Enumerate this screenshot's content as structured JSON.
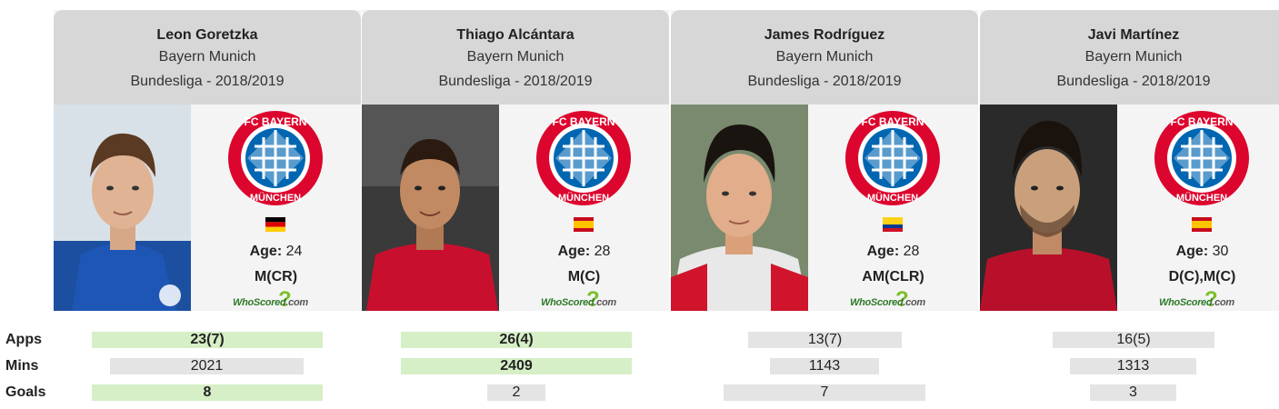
{
  "stat_labels": {
    "apps": "Apps",
    "mins": "Mins",
    "goals": "Goals"
  },
  "age_label": "Age:",
  "watermark": {
    "brand": "WhoScored",
    "suffix": ".com"
  },
  "accent_colors": {
    "best_bar": "#d6efc6",
    "bar": "#e4e4e4",
    "header": "#d7d7d7",
    "crest_red": "#dc052d",
    "crest_blue": "#0066b2"
  },
  "players": [
    {
      "name": "Leon Goretzka",
      "team": "Bayern Munich",
      "competition": "Bundesliga - 2018/2019",
      "age": "24",
      "position": "M(CR)",
      "flag": "germany-flag",
      "stats": {
        "apps": "23(7)",
        "mins": "2021",
        "goals": "8"
      }
    },
    {
      "name": "Thiago Alcántara",
      "team": "Bayern Munich",
      "competition": "Bundesliga - 2018/2019",
      "age": "28",
      "position": "M(C)",
      "flag": "spain-flag",
      "stats": {
        "apps": "26(4)",
        "mins": "2409",
        "goals": "2"
      }
    },
    {
      "name": "James Rodríguez",
      "team": "Bayern Munich",
      "competition": "Bundesliga - 2018/2019",
      "age": "28",
      "position": "AM(CLR)",
      "flag": "colombia-flag",
      "stats": {
        "apps": "13(7)",
        "mins": "1143",
        "goals": "7"
      }
    },
    {
      "name": "Javi Martínez",
      "team": "Bayern Munich",
      "competition": "Bundesliga - 2018/2019",
      "age": "30",
      "position": "D(C),M(C)",
      "flag": "spain-flag",
      "stats": {
        "apps": "16(5)",
        "mins": "1313",
        "goals": "3"
      }
    }
  ]
}
